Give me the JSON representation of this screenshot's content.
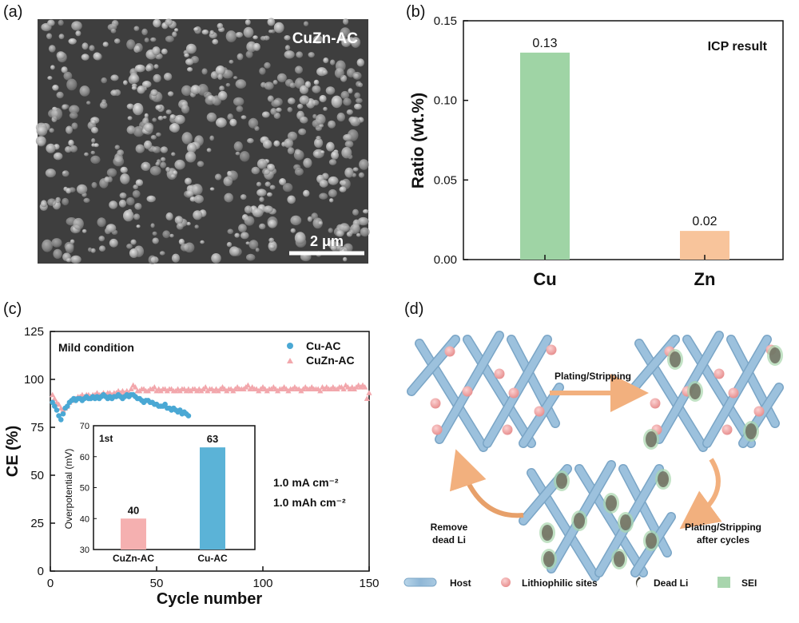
{
  "panels": {
    "a": {
      "label": "(a)",
      "image_text": "CuZn-AC",
      "scalebar": "2 μm"
    },
    "b": {
      "label": "(b)"
    },
    "c": {
      "label": "(c)"
    },
    "d": {
      "label": "(d)",
      "arrow_top": "Plating/Stripping",
      "arrow_left": [
        "Remove",
        "dead Li"
      ],
      "arrow_right": [
        "Plating/Stripping",
        "after cycles"
      ],
      "legend": [
        "Host",
        "Lithiophilic sites",
        "Dead  Li",
        "SEI"
      ],
      "colors": {
        "host": "#9cc1dd",
        "site": "#f0a4a4",
        "dead": "#6f6f60",
        "sei": "#a8d5ad",
        "arrow": "#f2b07e"
      }
    }
  },
  "chart_data": [
    {
      "id": "b",
      "type": "bar",
      "categories": [
        "Cu",
        "Zn"
      ],
      "values": [
        0.13,
        0.02
      ],
      "value_labels": [
        "0.13",
        "0.02"
      ],
      "bar_values": [
        0.13,
        0.018
      ],
      "colors": [
        "#9fd4a5",
        "#f8c49b"
      ],
      "title": "",
      "annotation": "ICP result",
      "xlabel": "",
      "ylabel": "Ratio (wt.%)",
      "ylim": [
        0,
        0.15
      ],
      "yticks": [
        0.0,
        0.05,
        0.1,
        0.15
      ],
      "ytick_labels": [
        "0.00",
        "0.05",
        "0.10",
        "0.15"
      ],
      "grid": false
    },
    {
      "id": "c",
      "type": "scatter",
      "title": "",
      "annotation": "Mild condition",
      "conditions": [
        "1.0 mA cm⁻²",
        "1.0 mAh cm⁻²"
      ],
      "xlabel": "Cycle number",
      "ylabel": "CE (%)",
      "xlim": [
        0,
        150
      ],
      "ylim": [
        0,
        125
      ],
      "xticks": [
        0,
        50,
        100,
        150
      ],
      "yticks": [
        0,
        25,
        50,
        75,
        100,
        125
      ],
      "legend_position": "top-right",
      "series": [
        {
          "name": "Cu-AC",
          "color": "#4aa8d4",
          "marker": "circle",
          "x": [
            1,
            2,
            3,
            4,
            5,
            6,
            7,
            8,
            9,
            10,
            11,
            12,
            13,
            14,
            15,
            16,
            17,
            18,
            19,
            20,
            21,
            22,
            23,
            24,
            25,
            26,
            27,
            28,
            29,
            30,
            31,
            32,
            33,
            34,
            35,
            36,
            37,
            38,
            39,
            40,
            41,
            42,
            43,
            44,
            45,
            46,
            47,
            48,
            49,
            50,
            51,
            52,
            53,
            54,
            55,
            56,
            57,
            58,
            59,
            60,
            61,
            62,
            63,
            64,
            65
          ],
          "y": [
            88,
            86,
            84,
            81,
            79,
            82,
            85,
            86,
            88,
            89,
            90,
            89,
            90,
            90,
            89,
            90,
            91,
            90,
            90,
            91,
            90,
            91,
            90,
            91,
            92,
            91,
            90,
            91,
            90,
            91,
            91,
            92,
            91,
            90,
            91,
            92,
            91,
            92,
            92,
            91,
            90,
            90,
            89,
            88,
            89,
            89,
            88,
            88,
            87,
            87,
            86,
            86,
            86,
            87,
            85,
            85,
            84,
            85,
            84,
            83,
            84,
            82,
            83,
            82,
            81
          ]
        },
        {
          "name": "CuZn-AC",
          "color": "#f2a7ac",
          "marker": "triangle",
          "x": [
            1,
            2,
            3,
            4,
            5,
            6,
            7,
            8,
            9,
            10,
            11,
            12,
            13,
            14,
            15,
            16,
            17,
            18,
            19,
            20,
            21,
            22,
            23,
            24,
            25,
            26,
            27,
            28,
            29,
            30,
            31,
            32,
            33,
            34,
            35,
            36,
            37,
            38,
            39,
            40,
            41,
            42,
            43,
            44,
            45,
            46,
            47,
            48,
            49,
            50,
            51,
            52,
            53,
            54,
            55,
            56,
            57,
            58,
            59,
            60,
            61,
            62,
            63,
            64,
            65,
            66,
            67,
            68,
            69,
            70,
            71,
            72,
            73,
            74,
            75,
            76,
            77,
            78,
            79,
            80,
            81,
            82,
            83,
            84,
            85,
            86,
            87,
            88,
            89,
            90,
            91,
            92,
            93,
            94,
            95,
            96,
            97,
            98,
            99,
            100,
            101,
            102,
            103,
            104,
            105,
            106,
            107,
            108,
            109,
            110,
            111,
            112,
            113,
            114,
            115,
            116,
            117,
            118,
            119,
            120,
            121,
            122,
            123,
            124,
            125,
            126,
            127,
            128,
            129,
            130,
            131,
            132,
            133,
            134,
            135,
            136,
            137,
            138,
            139,
            140,
            141,
            142,
            143,
            144,
            145,
            146,
            147,
            148,
            149,
            150
          ],
          "y": [
            92,
            90,
            88,
            87,
            85,
            84,
            85,
            86,
            88,
            89,
            90,
            90,
            91,
            91,
            92,
            91,
            92,
            92,
            91,
            92,
            92,
            93,
            92,
            92,
            93,
            92,
            93,
            93,
            92,
            93,
            93,
            94,
            93,
            94,
            93,
            94,
            93,
            95,
            97,
            96,
            94,
            94,
            95,
            95,
            94,
            94,
            95,
            95,
            96,
            94,
            95,
            94,
            95,
            95,
            94,
            95,
            95,
            94,
            94,
            95,
            94,
            95,
            95,
            94,
            95,
            94,
            95,
            95,
            94,
            95,
            94,
            95,
            96,
            94,
            95,
            95,
            94,
            95,
            94,
            95,
            96,
            95,
            94,
            95,
            95,
            94,
            95,
            96,
            95,
            95,
            95,
            96,
            97,
            95,
            96,
            95,
            95,
            94,
            95,
            96,
            95,
            94,
            95,
            95,
            96,
            95,
            94,
            95,
            95,
            96,
            95,
            94,
            95,
            95,
            96,
            95,
            95,
            94,
            95,
            96,
            95,
            95,
            96,
            95,
            95,
            95,
            94,
            96,
            95,
            96,
            95,
            95,
            96,
            95,
            95,
            96,
            96,
            95,
            97,
            96,
            95,
            96,
            95,
            96,
            97,
            96,
            97,
            96,
            90,
            93
          ]
        }
      ],
      "inset": {
        "type": "bar",
        "categories": [
          "CuZn-AC",
          "Cu-AC"
        ],
        "values": [
          40,
          63
        ],
        "value_labels": [
          "40",
          "63"
        ],
        "colors": [
          "#f5b0b0",
          "#5bb3d7"
        ],
        "ylabel": "Overpotential (mV)",
        "annotation": "1st",
        "ylim": [
          30,
          70
        ],
        "yticks": [
          30,
          40,
          50,
          60,
          70
        ]
      }
    }
  ]
}
